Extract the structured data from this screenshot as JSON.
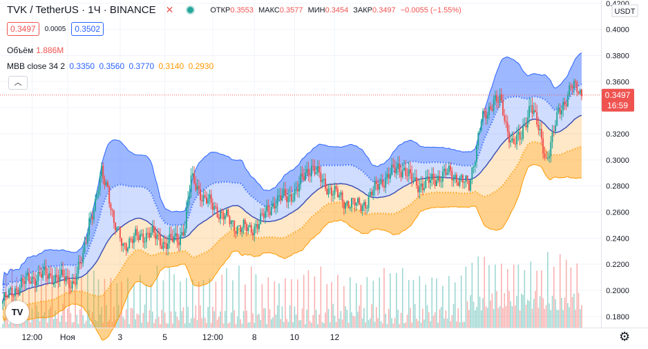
{
  "header": {
    "symbol": "TVK / TetherUS · 1Ч · BINANCE",
    "open_label": "ОТКР",
    "open": "0.3553",
    "high_label": "МАКС",
    "high": "0.3577",
    "low_label": "МИН",
    "low": "0.3454",
    "close_label": "ЗАКР",
    "close": "0.3497",
    "change": "−0.0055 (−1.55%)"
  },
  "trade": {
    "sell": "0.3497",
    "spread": "0.0005",
    "buy": "0.3502"
  },
  "volume": {
    "label": "Объём",
    "value": "1.886M"
  },
  "indicator": {
    "label": "MBB close 34 2",
    "v1": "0.3350",
    "v2": "0.3560",
    "v3": "0.3770",
    "v4": "0.3140",
    "v5": "0.2930"
  },
  "price_axis": {
    "unit": "USDT",
    "last_price": "0.3497",
    "countdown": "16:59"
  },
  "colors": {
    "up": "#26a69a",
    "down": "#ef5350",
    "upper_band": "#2962ff",
    "lower_band": "#ff9800"
  },
  "icons": {
    "close": "close-x-icon",
    "live": "live-dot-icon",
    "collapse": "chevron-up-icon",
    "settings": "gear-icon",
    "logo": "tradingview-logo-icon"
  },
  "chart_data": {
    "type": "candlestick",
    "y_ticks": [
      "0.4200",
      "0.4000",
      "0.3800",
      "0.3600",
      "0.3400",
      "0.3200",
      "0.3000",
      "0.2800",
      "0.2600",
      "0.2400",
      "0.2200",
      "0.2000",
      "0.1800"
    ],
    "x_ticks": [
      "12:00",
      "Ноя",
      "3",
      "5",
      "12:00",
      "8",
      "10",
      "12"
    ],
    "ylim": [
      0.172,
      0.422
    ],
    "close_anchors": [
      [
        0,
        0.192
      ],
      [
        12,
        0.205
      ],
      [
        24,
        0.212
      ],
      [
        36,
        0.21
      ],
      [
        46,
        0.206
      ],
      [
        52,
        0.225
      ],
      [
        56,
        0.255
      ],
      [
        60,
        0.265
      ],
      [
        64,
        0.29
      ],
      [
        68,
        0.28
      ],
      [
        72,
        0.25
      ],
      [
        78,
        0.235
      ],
      [
        86,
        0.24
      ],
      [
        95,
        0.244
      ],
      [
        105,
        0.236
      ],
      [
        114,
        0.24
      ],
      [
        118,
        0.25
      ],
      [
        122,
        0.285
      ],
      [
        126,
        0.28
      ],
      [
        130,
        0.27
      ],
      [
        136,
        0.265
      ],
      [
        142,
        0.258
      ],
      [
        150,
        0.25
      ],
      [
        160,
        0.246
      ],
      [
        168,
        0.255
      ],
      [
        176,
        0.268
      ],
      [
        184,
        0.272
      ],
      [
        190,
        0.275
      ],
      [
        196,
        0.29
      ],
      [
        200,
        0.295
      ],
      [
        206,
        0.285
      ],
      [
        214,
        0.275
      ],
      [
        222,
        0.268
      ],
      [
        230,
        0.265
      ],
      [
        236,
        0.268
      ],
      [
        244,
        0.283
      ],
      [
        250,
        0.287
      ],
      [
        256,
        0.295
      ],
      [
        260,
        0.292
      ],
      [
        264,
        0.285
      ],
      [
        272,
        0.28
      ],
      [
        280,
        0.286
      ],
      [
        290,
        0.29
      ],
      [
        296,
        0.285
      ],
      [
        302,
        0.28
      ],
      [
        306,
        0.305
      ],
      [
        310,
        0.33
      ],
      [
        314,
        0.335
      ],
      [
        318,
        0.348
      ],
      [
        322,
        0.345
      ],
      [
        326,
        0.325
      ],
      [
        330,
        0.315
      ],
      [
        336,
        0.316
      ],
      [
        342,
        0.345
      ],
      [
        348,
        0.318
      ],
      [
        352,
        0.3
      ],
      [
        356,
        0.318
      ],
      [
        360,
        0.335
      ],
      [
        364,
        0.345
      ],
      [
        368,
        0.357
      ],
      [
        372,
        0.353
      ],
      [
        375,
        0.35
      ]
    ],
    "candles": 376,
    "mbb": {
      "period": 34,
      "multiplier": 2
    },
    "volume_max": "1.886M"
  }
}
